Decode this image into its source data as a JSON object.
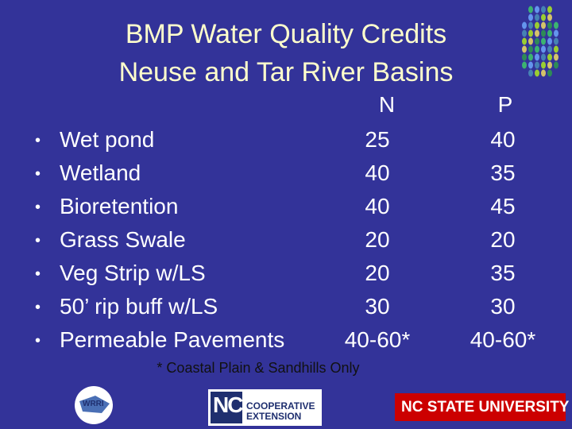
{
  "header": {
    "title_lines": [
      "BMP Water Quality Credits",
      "Neuse and Tar River Basins"
    ]
  },
  "table": {
    "columns": [
      "N",
      "P"
    ],
    "rows": [
      [
        "Wet pond",
        "25",
        "40"
      ],
      [
        "Wetland",
        "40",
        "35"
      ],
      [
        "Bioretention",
        "40",
        "45"
      ],
      [
        "Grass Swale",
        "20",
        "20"
      ],
      [
        "Veg Strip w/LS",
        "20",
        "35"
      ],
      [
        "50’ rip buff w/LS",
        "30",
        "30"
      ],
      [
        "Permeable Pavements",
        "40-60*",
        "40-60*"
      ]
    ]
  },
  "footnote": "* Coastal Plain & Sandhills Only",
  "logos": {
    "extension": [
      "NC",
      "COOPERATIVE",
      "EXTENSION"
    ],
    "university": "NC STATE UNIVERSITY",
    "wrri": "WRRI"
  }
}
